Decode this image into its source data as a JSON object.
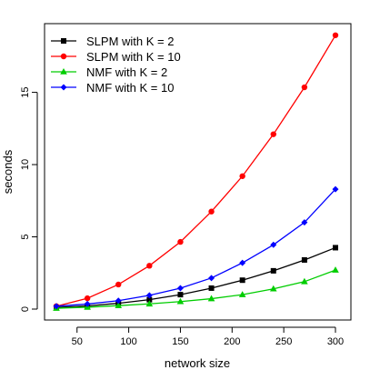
{
  "chart_data": {
    "type": "line",
    "xlabel": "network size",
    "ylabel": "seconds",
    "x": [
      30,
      60,
      90,
      120,
      150,
      180,
      210,
      240,
      270,
      300
    ],
    "xlim": [
      30,
      300
    ],
    "ylim": [
      0,
      19
    ],
    "x_ticks": [
      50,
      100,
      150,
      200,
      250,
      300
    ],
    "y_ticks": [
      0,
      5,
      10,
      15
    ],
    "grid": false,
    "legend_position": "top-left",
    "series": [
      {
        "name": "SLPM with K = 2",
        "color": "#000000",
        "marker": "square",
        "values": [
          0.12,
          0.22,
          0.4,
          0.65,
          1.0,
          1.45,
          2.0,
          2.65,
          3.4,
          4.25
        ]
      },
      {
        "name": "SLPM with K = 10",
        "color": "#ff0000",
        "marker": "circle",
        "values": [
          0.2,
          0.75,
          1.7,
          3.0,
          4.65,
          6.75,
          9.2,
          12.1,
          15.35,
          18.95
        ]
      },
      {
        "name": "NMF with K = 2",
        "color": "#00cd00",
        "marker": "triangle",
        "values": [
          0.06,
          0.13,
          0.24,
          0.36,
          0.52,
          0.72,
          1.0,
          1.4,
          1.9,
          2.7
        ]
      },
      {
        "name": "NMF with K = 10",
        "color": "#0000ff",
        "marker": "diamond",
        "values": [
          0.2,
          0.35,
          0.58,
          0.95,
          1.45,
          2.15,
          3.2,
          4.45,
          6.0,
          8.3
        ]
      }
    ]
  }
}
